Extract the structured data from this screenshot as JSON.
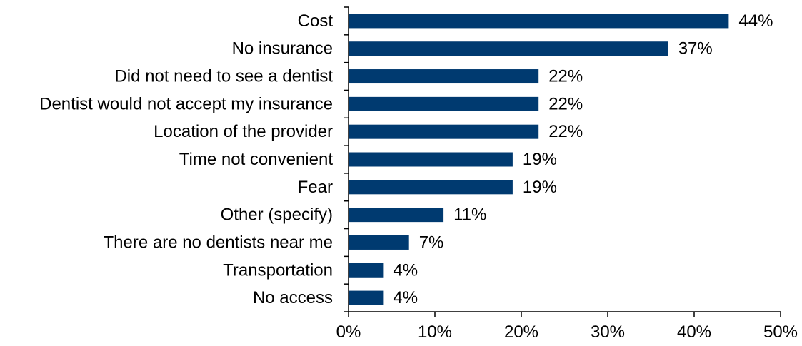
{
  "chart_data": {
    "type": "bar",
    "orientation": "horizontal",
    "categories": [
      "Cost",
      "No insurance",
      "Did not need to see a dentist",
      "Dentist would not accept my insurance",
      "Location of the provider",
      "Time not convenient",
      "Fear",
      "Other (specify)",
      "There are no dentists near me",
      "Transportation",
      "No access"
    ],
    "values": [
      44,
      37,
      22,
      22,
      22,
      19,
      19,
      11,
      7,
      4,
      4
    ],
    "value_labels": [
      "44%",
      "37%",
      "22%",
      "22%",
      "22%",
      "19%",
      "19%",
      "11%",
      "7%",
      "4%",
      "4%"
    ],
    "xlim": [
      0,
      50
    ],
    "x_ticks": [
      0,
      10,
      20,
      30,
      40,
      50
    ],
    "x_tick_labels": [
      "0%",
      "10%",
      "20%",
      "30%",
      "40%",
      "50%"
    ],
    "title": "",
    "xlabel": "",
    "ylabel": "",
    "grid": false,
    "legend": "none",
    "bar_color": "#003A70"
  }
}
